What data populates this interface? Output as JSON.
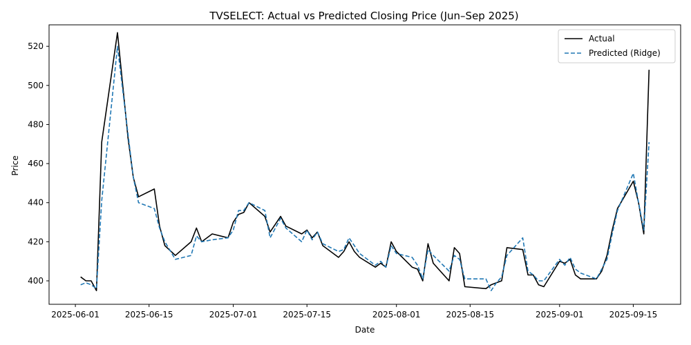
{
  "chart_data": {
    "type": "line",
    "title": "TVSELECT: Actual vs Predicted Closing Price (Jun–Sep 2025)",
    "xlabel": "Date",
    "ylabel": "Price",
    "xlim": [
      "2025-05-27",
      "2025-09-24"
    ],
    "ylim": [
      388,
      531
    ],
    "x_ticks": [
      "2025-06-01",
      "2025-06-15",
      "2025-07-01",
      "2025-07-15",
      "2025-08-01",
      "2025-08-15",
      "2025-09-01",
      "2025-09-15"
    ],
    "y_ticks": [
      400,
      420,
      440,
      460,
      480,
      500,
      520
    ],
    "grid": false,
    "legend": "top-right",
    "x": [
      "2025-06-02",
      "2025-06-03",
      "2025-06-04",
      "2025-06-05",
      "2025-06-06",
      "2025-06-09",
      "2025-06-11",
      "2025-06-12",
      "2025-06-13",
      "2025-06-16",
      "2025-06-17",
      "2025-06-18",
      "2025-06-20",
      "2025-06-23",
      "2025-06-24",
      "2025-06-25",
      "2025-06-27",
      "2025-06-30",
      "2025-07-01",
      "2025-07-02",
      "2025-07-03",
      "2025-07-04",
      "2025-07-07",
      "2025-07-08",
      "2025-07-09",
      "2025-07-10",
      "2025-07-11",
      "2025-07-14",
      "2025-07-15",
      "2025-07-16",
      "2025-07-17",
      "2025-07-18",
      "2025-07-21",
      "2025-07-22",
      "2025-07-23",
      "2025-07-24",
      "2025-07-25",
      "2025-07-28",
      "2025-07-29",
      "2025-07-30",
      "2025-07-31",
      "2025-08-01",
      "2025-08-04",
      "2025-08-05",
      "2025-08-06",
      "2025-08-07",
      "2025-08-08",
      "2025-08-11",
      "2025-08-12",
      "2025-08-13",
      "2025-08-14",
      "2025-08-18",
      "2025-08-19",
      "2025-08-20",
      "2025-08-21",
      "2025-08-22",
      "2025-08-25",
      "2025-08-26",
      "2025-08-27",
      "2025-08-28",
      "2025-08-29",
      "2025-09-01",
      "2025-09-02",
      "2025-09-03",
      "2025-09-04",
      "2025-09-05",
      "2025-09-08",
      "2025-09-09",
      "2025-09-10",
      "2025-09-11",
      "2025-09-12",
      "2025-09-15",
      "2025-09-16",
      "2025-09-17",
      "2025-09-18"
    ],
    "series": [
      {
        "name": "Actual",
        "color": "#000000",
        "style": "solid",
        "values": [
          402,
          400,
          400,
          395,
          471,
          527,
          473,
          453,
          443,
          447,
          428,
          418,
          413,
          420,
          427,
          420,
          424,
          422,
          430,
          434,
          435,
          440,
          433,
          425,
          429,
          433,
          428,
          424,
          426,
          422,
          425,
          418,
          412,
          415,
          420,
          415,
          412,
          407,
          409,
          407,
          420,
          415,
          407,
          406,
          400,
          419,
          409,
          400,
          417,
          414,
          397,
          396,
          398,
          399,
          400,
          417,
          416,
          403,
          403,
          398,
          397,
          410,
          409,
          411,
          403,
          401,
          401,
          405,
          413,
          426,
          437,
          451,
          440,
          424,
          508
        ]
      },
      {
        "name": "Predicted (Ridge)",
        "color": "#1f77b4",
        "style": "dashed",
        "values": [
          398,
          399,
          398,
          396,
          441,
          520,
          475,
          453,
          440,
          437,
          427,
          420,
          411,
          413,
          423,
          420,
          421,
          422,
          426,
          436,
          436,
          440,
          436,
          422,
          427,
          432,
          427,
          420,
          426,
          421,
          425,
          419,
          415,
          416,
          422,
          418,
          414,
          408,
          410,
          407,
          418,
          414,
          412,
          408,
          401,
          416,
          413,
          405,
          413,
          411,
          401,
          401,
          395,
          399,
          402,
          413,
          422,
          405,
          403,
          400,
          400,
          411,
          408,
          412,
          406,
          404,
          401,
          406,
          411,
          424,
          436,
          455,
          440,
          426,
          471
        ]
      }
    ]
  }
}
